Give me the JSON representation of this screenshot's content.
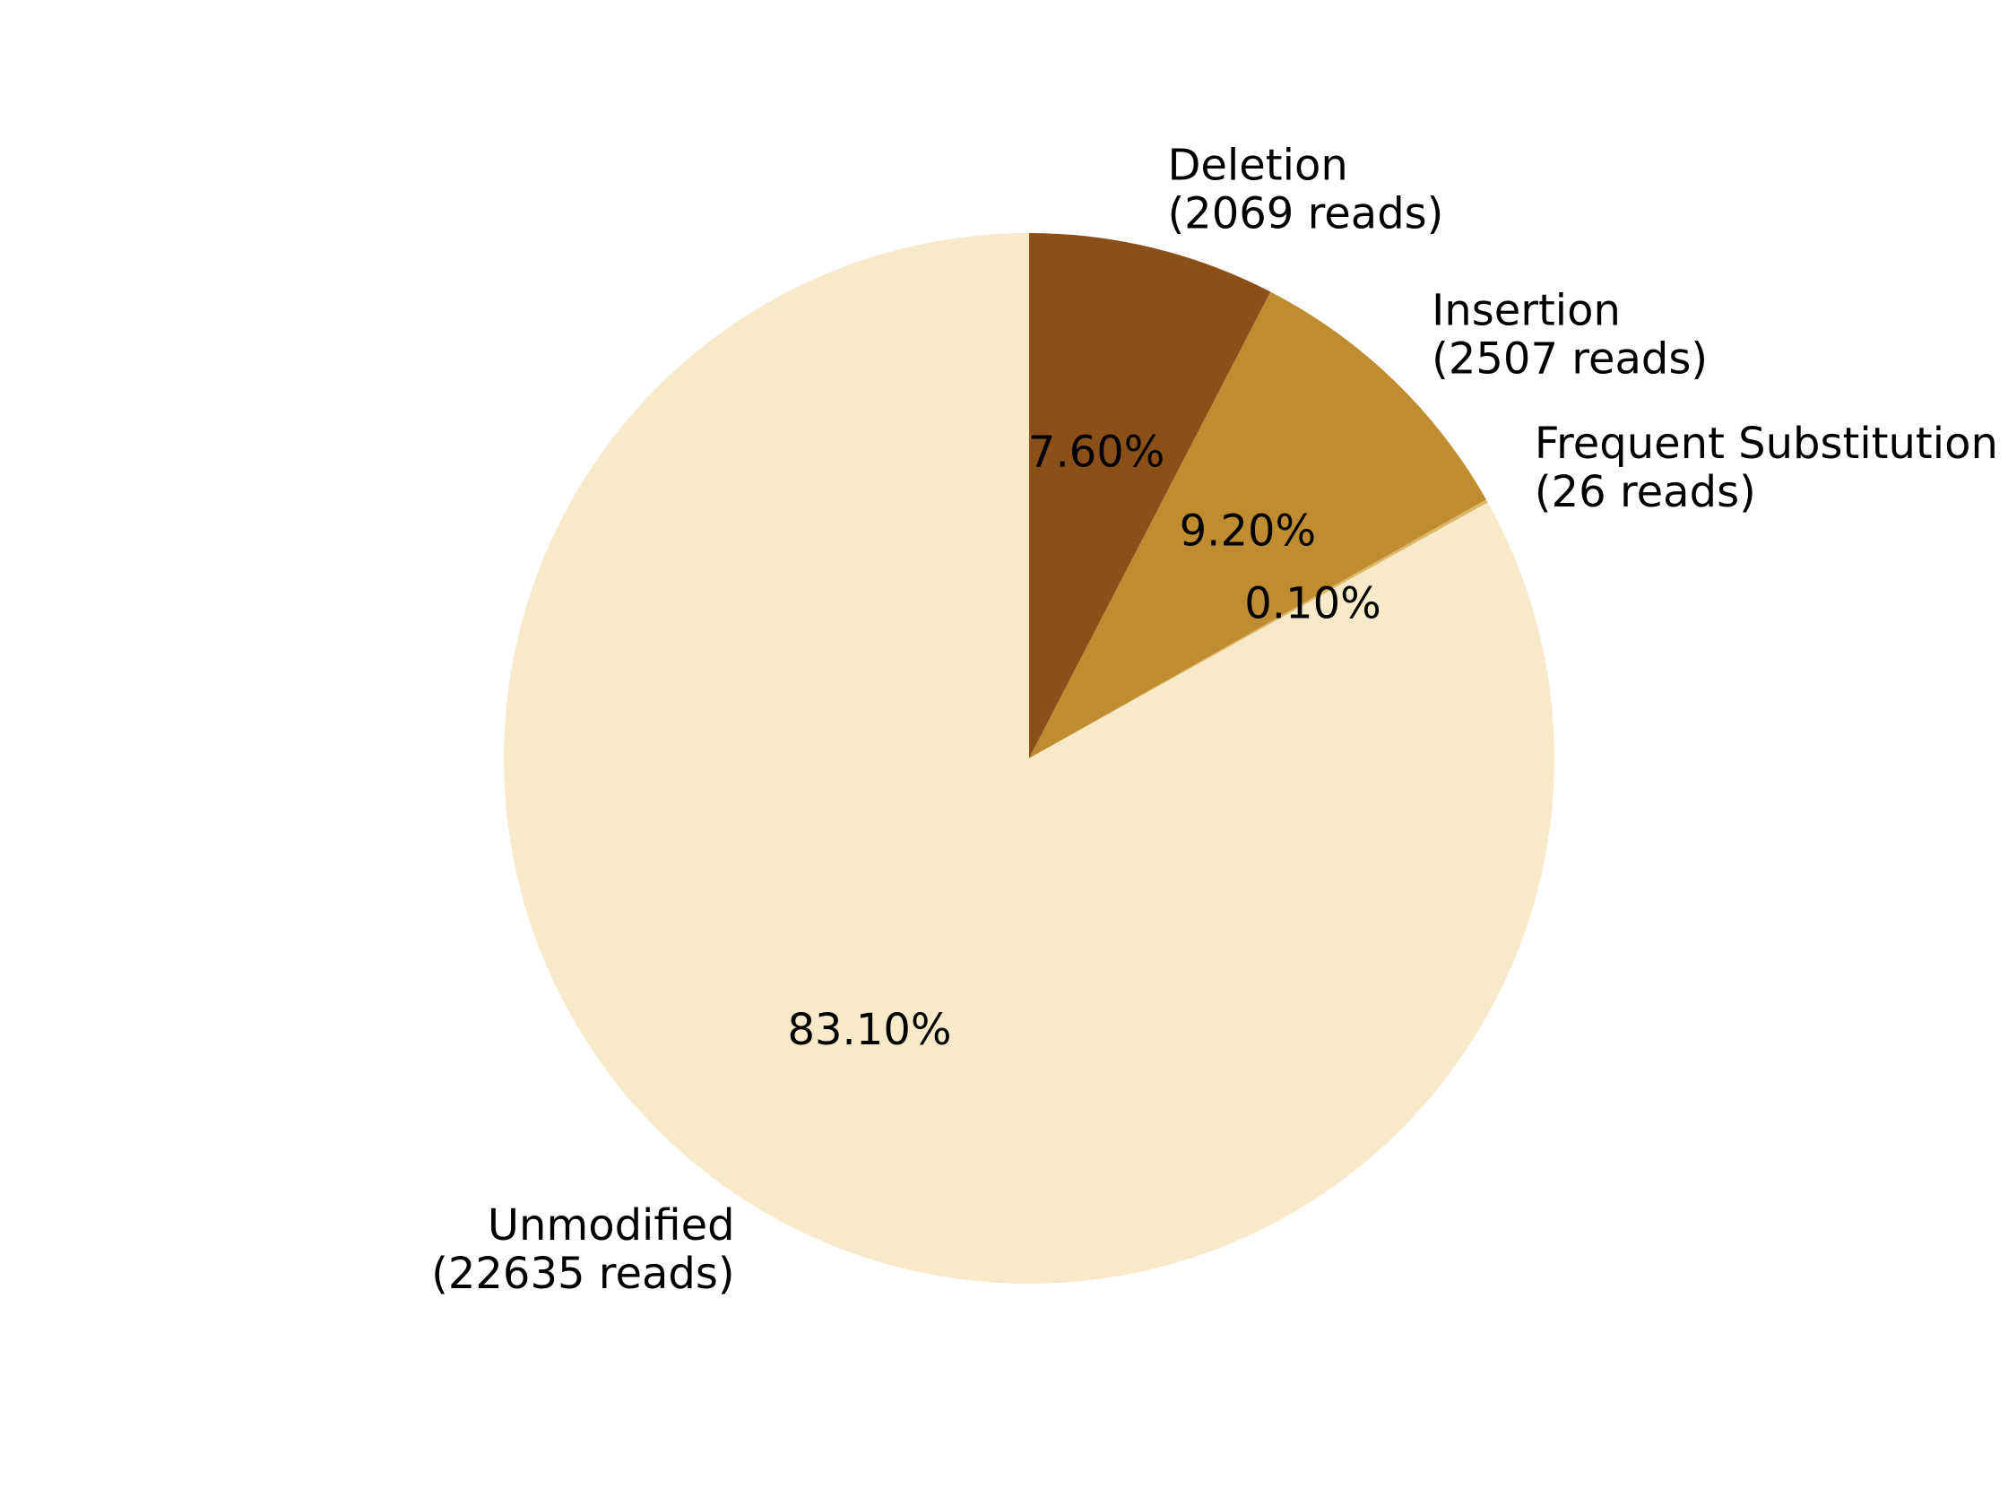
{
  "chart_data": {
    "type": "pie",
    "title": "",
    "start_angle": "top (12 o'clock), clockwise",
    "slices": [
      {
        "label": "Deletion",
        "reads_label": "(2069 reads)",
        "reads": 2069,
        "percent": 7.6,
        "percent_label": "7.60%",
        "color": "#8B4F1A"
      },
      {
        "label": "Insertion",
        "reads_label": "(2507 reads)",
        "reads": 2507,
        "percent": 9.2,
        "percent_label": "9.20%",
        "color": "#BF8C30"
      },
      {
        "label": "Frequent Substitution",
        "reads_label": "(26 reads)",
        "reads": 26,
        "percent": 0.1,
        "percent_label": "0.10%",
        "color": "#DDB768"
      },
      {
        "label": "Unmodified",
        "reads_label": "(22635 reads)",
        "reads": 22635,
        "percent": 83.1,
        "percent_label": "83.10%",
        "color": "#F8E9C9"
      }
    ]
  }
}
